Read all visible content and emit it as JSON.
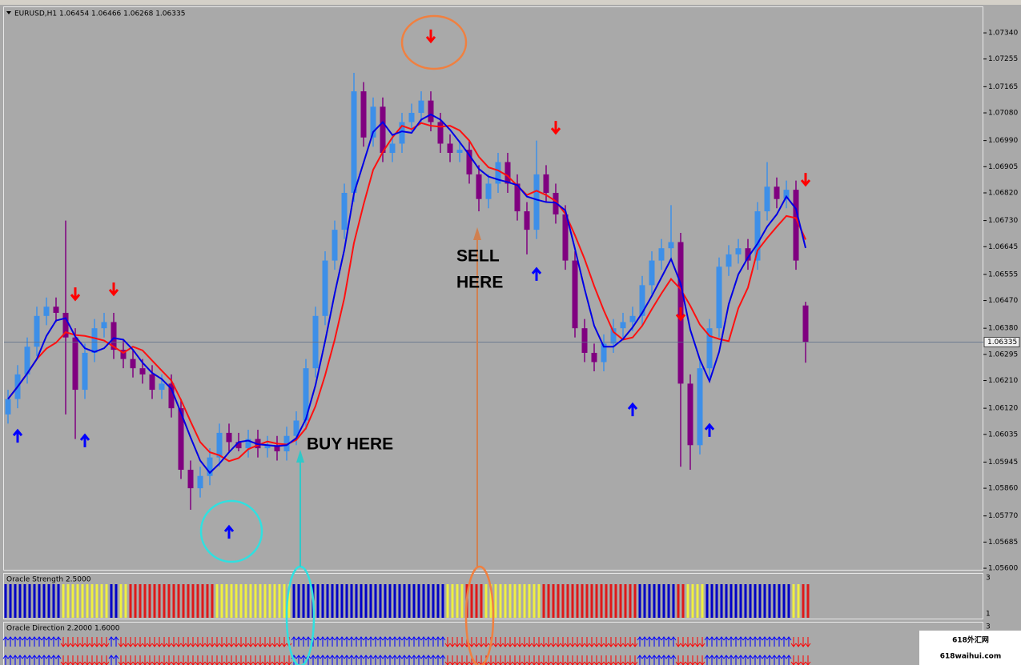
{
  "chart_data": {
    "type": "candlestick",
    "title": "EURUSD,H1 1.06454 1.06466 1.06268 1.06335",
    "up_color": "#3d8fe8",
    "down_color": "#800080",
    "open": [
      1.061,
      1.0615,
      1.0623,
      1.0632,
      1.0642,
      1.0645,
      1.0643,
      1.0635,
      1.0618,
      1.063,
      1.0638,
      1.064,
      1.0631,
      1.0628,
      1.0625,
      1.0623,
      1.0618,
      1.062,
      1.0612,
      1.0592,
      1.0586,
      1.059,
      1.0596,
      1.0604,
      1.0601,
      1.0599,
      1.0602,
      1.0599,
      1.06,
      1.0598,
      1.0603,
      1.0608,
      1.0625,
      1.0642,
      1.066,
      1.067,
      1.0682,
      1.0715,
      1.07,
      1.071,
      1.0695,
      1.0698,
      1.0705,
      1.0708,
      1.0712,
      1.0705,
      1.0698,
      1.0695,
      1.0696,
      1.0688,
      1.068,
      1.0685,
      1.0692,
      1.0685,
      1.0676,
      1.067,
      1.0688,
      1.0682,
      1.0675,
      1.066,
      1.0638,
      1.063,
      1.0627,
      1.0633,
      1.0638,
      1.064,
      1.0642,
      1.0652,
      1.066,
      1.0664,
      1.0666,
      1.062,
      1.06,
      1.0625,
      1.0638,
      1.0658,
      1.0662,
      1.0664,
      1.066,
      1.0676,
      1.0684,
      1.068,
      1.0683,
      1.06454
    ],
    "high": [
      1.0618,
      1.0626,
      1.0635,
      1.0645,
      1.0648,
      1.0648,
      1.0673,
      1.0638,
      1.0633,
      1.0641,
      1.0643,
      1.0643,
      1.0634,
      1.0631,
      1.0628,
      1.0626,
      1.0623,
      1.0623,
      1.0615,
      1.0595,
      1.0593,
      1.0599,
      1.0607,
      1.0607,
      1.0604,
      1.0605,
      1.0605,
      1.0603,
      1.0603,
      1.0606,
      1.0611,
      1.0628,
      1.0645,
      1.0663,
      1.0673,
      1.0685,
      1.0721,
      1.0718,
      1.0713,
      1.0713,
      1.0701,
      1.0708,
      1.0711,
      1.0715,
      1.0715,
      1.0708,
      1.0701,
      1.0699,
      1.0699,
      1.0691,
      1.0688,
      1.0695,
      1.0695,
      1.0688,
      1.0679,
      1.0699,
      1.0691,
      1.0685,
      1.0678,
      1.0663,
      1.0641,
      1.0633,
      1.0636,
      1.0641,
      1.0643,
      1.0645,
      1.0655,
      1.0663,
      1.0667,
      1.0678,
      1.0669,
      1.0623,
      1.0628,
      1.0641,
      1.0661,
      1.0665,
      1.0667,
      1.0667,
      1.0679,
      1.0692,
      1.0687,
      1.0686,
      1.0686,
      1.06466
    ],
    "low": [
      1.0607,
      1.0612,
      1.062,
      1.0629,
      1.0639,
      1.064,
      1.061,
      1.0602,
      1.0615,
      1.0627,
      1.0635,
      1.0628,
      1.0625,
      1.0622,
      1.062,
      1.0615,
      1.0615,
      1.0609,
      1.0589,
      1.0579,
      1.0583,
      1.0587,
      1.0593,
      1.0598,
      1.0598,
      1.0596,
      1.0596,
      1.0596,
      1.0595,
      1.0595,
      1.06,
      1.0605,
      1.0622,
      1.0639,
      1.0657,
      1.0667,
      1.0679,
      1.0697,
      1.0697,
      1.0692,
      1.0692,
      1.0695,
      1.0702,
      1.0705,
      1.0702,
      1.0695,
      1.0692,
      1.0692,
      1.0685,
      1.0676,
      1.0677,
      1.0682,
      1.0682,
      1.0673,
      1.0662,
      1.0667,
      1.0679,
      1.0672,
      1.0657,
      1.0635,
      1.0627,
      1.0624,
      1.0624,
      1.063,
      1.0635,
      1.0637,
      1.0639,
      1.0649,
      1.0657,
      1.0661,
      1.0593,
      1.0592,
      1.0597,
      1.0622,
      1.0635,
      1.0655,
      1.0659,
      1.0657,
      1.0657,
      1.0673,
      1.0677,
      1.0677,
      1.0657,
      1.06268
    ],
    "close": [
      1.0615,
      1.0623,
      1.0632,
      1.0642,
      1.0645,
      1.0643,
      1.0635,
      1.0618,
      1.063,
      1.0638,
      1.064,
      1.0631,
      1.0628,
      1.0625,
      1.0623,
      1.0618,
      1.062,
      1.0612,
      1.0592,
      1.0586,
      1.059,
      1.0596,
      1.0604,
      1.0601,
      1.0599,
      1.0602,
      1.0599,
      1.06,
      1.0598,
      1.0603,
      1.0608,
      1.0625,
      1.0642,
      1.066,
      1.067,
      1.0682,
      1.0715,
      1.07,
      1.071,
      1.0695,
      1.0698,
      1.0705,
      1.0708,
      1.0712,
      1.0705,
      1.0698,
      1.0695,
      1.0696,
      1.0688,
      1.068,
      1.0685,
      1.0692,
      1.0685,
      1.0676,
      1.067,
      1.0688,
      1.0682,
      1.0675,
      1.066,
      1.0638,
      1.063,
      1.0627,
      1.0633,
      1.0638,
      1.064,
      1.0642,
      1.0652,
      1.066,
      1.0664,
      1.0666,
      1.062,
      1.06,
      1.0625,
      1.0638,
      1.0658,
      1.0662,
      1.0664,
      1.066,
      1.0676,
      1.0684,
      1.068,
      1.0683,
      1.066,
      1.06335
    ],
    "lines": [
      {
        "color": "#ff1010",
        "values": [
          1.0615,
          1.0619,
          1.06233,
          1.0628,
          1.06314,
          1.06333,
          1.06367,
          1.06358,
          1.06355,
          1.06348,
          1.0634,
          1.0632,
          1.063,
          1.0632,
          1.06308,
          1.06275,
          1.06242,
          1.0621,
          1.06147,
          1.06077,
          1.0601,
          1.05977,
          1.05967,
          1.05948,
          1.05958,
          1.05987,
          1.06,
          1.06012,
          1.06005,
          1.06002,
          1.06017,
          1.06055,
          1.06127,
          1.06227,
          1.06343,
          1.06478,
          1.06657,
          1.06782,
          1.06895,
          1.06953,
          1.07,
          1.07038,
          1.07027,
          1.07047,
          1.07038,
          1.07035,
          1.07038,
          1.07023,
          1.0699,
          1.06937,
          1.06903,
          1.06893,
          1.06875,
          1.06843,
          1.06813,
          1.06827,
          1.06813,
          1.06793,
          1.06752,
          1.06682,
          1.06605,
          1.06517,
          1.06438,
          1.06368,
          1.06343,
          1.0635,
          1.06388,
          1.06442,
          1.06493,
          1.0654,
          1.06507,
          1.06453,
          1.06392,
          1.06355,
          1.06345,
          1.06338,
          1.06445,
          1.06512,
          1.06633,
          1.06673,
          1.0671,
          1.06745,
          1.06738,
          1.06668
        ]
      },
      {
        "color": "#0000e6",
        "values": [
          1.0615,
          1.0619,
          1.06233,
          1.0628,
          1.06355,
          1.06405,
          1.06413,
          1.06353,
          1.06315,
          1.06303,
          1.06315,
          1.06348,
          1.06343,
          1.0631,
          1.06268,
          1.06235,
          1.06215,
          1.06183,
          1.06105,
          1.06025,
          1.0595,
          1.0591,
          1.0594,
          1.05977,
          1.0601,
          1.06015,
          1.06003,
          1.06,
          1.05997,
          1.06,
          1.06023,
          1.06085,
          1.06195,
          1.06338,
          1.06493,
          1.06635,
          1.06818,
          1.06918,
          1.07018,
          1.0705,
          1.07008,
          1.0702,
          1.07015,
          1.07058,
          1.07075,
          1.07058,
          1.07025,
          1.06985,
          1.06943,
          1.06898,
          1.06873,
          1.06863,
          1.06855,
          1.06845,
          1.06808,
          1.06798,
          1.0679,
          1.06788,
          1.06763,
          1.06638,
          1.06508,
          1.06388,
          1.0632,
          1.0632,
          1.06345,
          1.06383,
          1.0643,
          1.06485,
          1.06545,
          1.06605,
          1.06525,
          1.06375,
          1.06278,
          1.06208,
          1.06303,
          1.06458,
          1.06555,
          1.0661,
          1.06655,
          1.0671,
          1.0675,
          1.06808,
          1.06768,
          1.06641
        ]
      }
    ],
    "signals": {
      "up_color": "#0000ff",
      "down_color": "#ff0000",
      "up": [
        {
          "index": 1,
          "price": 1.06029
        },
        {
          "index": 8,
          "price": 1.06014
        },
        {
          "index": 23,
          "price": 1.05717
        },
        {
          "index": 55,
          "price": 1.06555
        },
        {
          "index": 65,
          "price": 1.06115
        },
        {
          "index": 73,
          "price": 1.06048
        }
      ],
      "down": [
        {
          "index": 7,
          "price": 1.06492
        },
        {
          "index": 11,
          "price": 1.06508
        },
        {
          "index": 44,
          "price": 1.0733
        },
        {
          "index": 57,
          "price": 1.07033
        },
        {
          "index": 70,
          "price": 1.06427
        },
        {
          "index": 83,
          "price": 1.06864
        }
      ]
    },
    "current_price": 1.06335,
    "ylim": [
      1.05595,
      1.07426
    ],
    "yticks": [
      {
        "value": 1.0734,
        "label": "1.07340"
      },
      1.07255,
      1.07165,
      {
        "value": 1.0708,
        "label": "1.07080"
      },
      {
        "value": 1.0699,
        "label": "1.06990"
      },
      1.06905,
      {
        "value": 1.0682,
        "label": "1.06820"
      },
      {
        "value": 1.0673,
        "label": "1.06730"
      },
      1.06645,
      1.06555,
      {
        "value": 1.0647,
        "label": "1.06470"
      },
      {
        "value": 1.0638,
        "label": "1.06380"
      },
      1.06295,
      {
        "value": 1.0621,
        "label": "1.06210"
      },
      {
        "value": 1.0612,
        "label": "1.06120"
      },
      1.06035,
      1.05945,
      {
        "value": 1.0586,
        "label": "1.05860"
      },
      {
        "value": 1.0577,
        "label": "1.05770"
      },
      1.05685,
      {
        "value": 1.056,
        "label": "1.05600"
      }
    ],
    "annotations": {
      "buy": "BUY HERE",
      "sell": [
        "SELL",
        "HERE"
      ]
    },
    "indicators": [
      {
        "title": "Oracle Strength 2.5000",
        "ticks": [
          3,
          1
        ],
        "colors": [
          "#0000c8",
          "#0000c8",
          "#0000c8",
          "#0000c8",
          "#0000c8",
          "#0000c8",
          "#f0f040",
          "#f0f040",
          "#f0f040",
          "#f0f040",
          "#f0f040",
          "#0000c8",
          "#f0f040",
          "#e01818",
          "#e01818",
          "#e01818",
          "#e01818",
          "#e01818",
          "#e01818",
          "#e01818",
          "#e01818",
          "#e01818",
          "#f0f040",
          "#f0f040",
          "#f0f040",
          "#f0f040",
          "#f0f040",
          "#f0f040",
          "#f0f040",
          "#f0f040",
          "#0000c8",
          "#0000c8",
          "#0000c8",
          "#0000c8",
          "#0000c8",
          "#0000c8",
          "#0000c8",
          "#0000c8",
          "#0000c8",
          "#0000c8",
          "#0000c8",
          "#0000c8",
          "#0000c8",
          "#0000c8",
          "#0000c8",
          "#0000c8",
          "#f0f040",
          "#f0f040",
          "#e01818",
          "#e01818",
          "#f0f040",
          "#f0f040",
          "#f0f040",
          "#f0f040",
          "#f0f040",
          "#f0f040",
          "#e01818",
          "#e01818",
          "#e01818",
          "#e01818",
          "#e01818",
          "#e01818",
          "#e01818",
          "#e01818",
          "#e01818",
          "#e01818",
          "#0000c8",
          "#0000c8",
          "#0000c8",
          "#0000c8",
          "#e01818",
          "#f0f040",
          "#f0f040",
          "#0000c8",
          "#0000c8",
          "#0000c8",
          "#0000c8",
          "#0000c8",
          "#0000c8",
          "#0000c8",
          "#0000c8",
          "#0000c8",
          "#f0f040",
          "#e01818"
        ]
      },
      {
        "title": "Oracle Direction 2.2000 1.6000",
        "ticks": [
          3
        ]
      }
    ],
    "watermark": [
      "618外汇网",
      "618waihui.com"
    ]
  }
}
